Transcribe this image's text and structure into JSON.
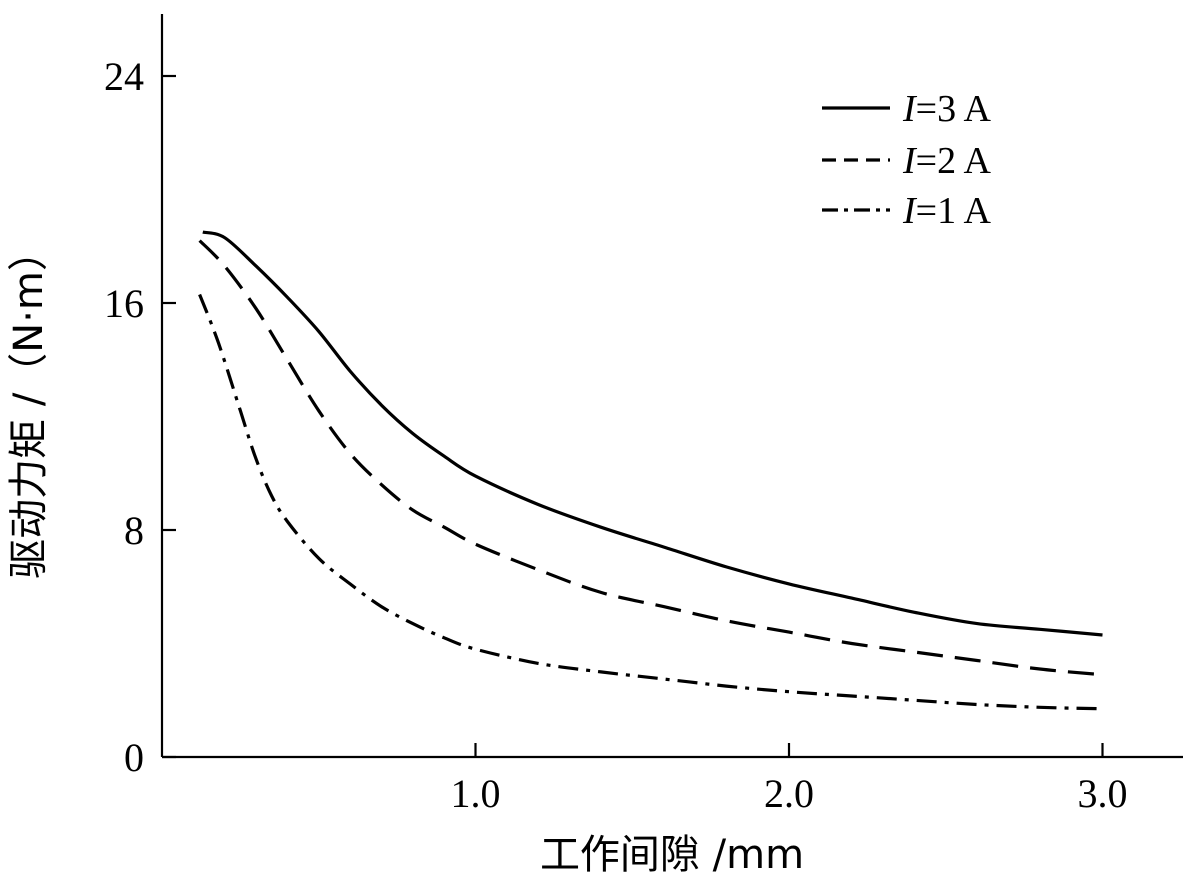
{
  "chart_data": {
    "type": "line",
    "title": "",
    "xlabel": "工作间隙 /mm",
    "ylabel": "驱动力矩 /（N·m）",
    "xlim": [
      0,
      3.2
    ],
    "ylim": [
      0,
      24
    ],
    "xticks": [
      "1.0",
      "2.0",
      "3.0"
    ],
    "xtick_values": [
      1.0,
      2.0,
      3.0
    ],
    "yticks": [
      "0",
      "8",
      "16",
      "24"
    ],
    "ytick_values": [
      0,
      8,
      16,
      24
    ],
    "grid": false,
    "legend_position": "top-right",
    "series": [
      {
        "name_var": "I",
        "name_rest": "=3 A",
        "style": "solid",
        "x": [
          0.13,
          0.2,
          0.3,
          0.4,
          0.5,
          0.6,
          0.7,
          0.8,
          0.9,
          1.0,
          1.2,
          1.4,
          1.6,
          1.8,
          2.0,
          2.2,
          2.4,
          2.6,
          2.8,
          3.0
        ],
        "y": [
          18.5,
          18.3,
          17.3,
          16.2,
          15.0,
          13.6,
          12.4,
          11.4,
          10.6,
          9.9,
          8.9,
          8.1,
          7.4,
          6.7,
          6.1,
          5.6,
          5.1,
          4.7,
          4.5,
          4.3
        ]
      },
      {
        "name_var": "I",
        "name_rest": "=2 A",
        "style": "dash",
        "x": [
          0.12,
          0.2,
          0.3,
          0.4,
          0.5,
          0.6,
          0.7,
          0.8,
          0.9,
          1.0,
          1.2,
          1.4,
          1.6,
          1.8,
          2.0,
          2.2,
          2.4,
          2.6,
          2.8,
          3.0
        ],
        "y": [
          18.2,
          17.3,
          15.8,
          14.0,
          12.2,
          10.7,
          9.6,
          8.7,
          8.1,
          7.5,
          6.6,
          5.8,
          5.3,
          4.8,
          4.4,
          4.0,
          3.7,
          3.4,
          3.1,
          2.9
        ]
      },
      {
        "name_var": "I",
        "name_rest": "=1 A",
        "style": "dashdot",
        "x": [
          0.12,
          0.18,
          0.25,
          0.3,
          0.35,
          0.4,
          0.5,
          0.6,
          0.7,
          0.8,
          0.9,
          1.0,
          1.2,
          1.4,
          1.6,
          1.8,
          2.0,
          2.2,
          2.4,
          2.6,
          2.8,
          3.0
        ],
        "y": [
          16.3,
          14.6,
          12.2,
          10.5,
          9.2,
          8.3,
          7.0,
          6.1,
          5.3,
          4.7,
          4.2,
          3.8,
          3.3,
          3.0,
          2.75,
          2.5,
          2.3,
          2.15,
          2.0,
          1.85,
          1.75,
          1.7
        ]
      }
    ]
  }
}
